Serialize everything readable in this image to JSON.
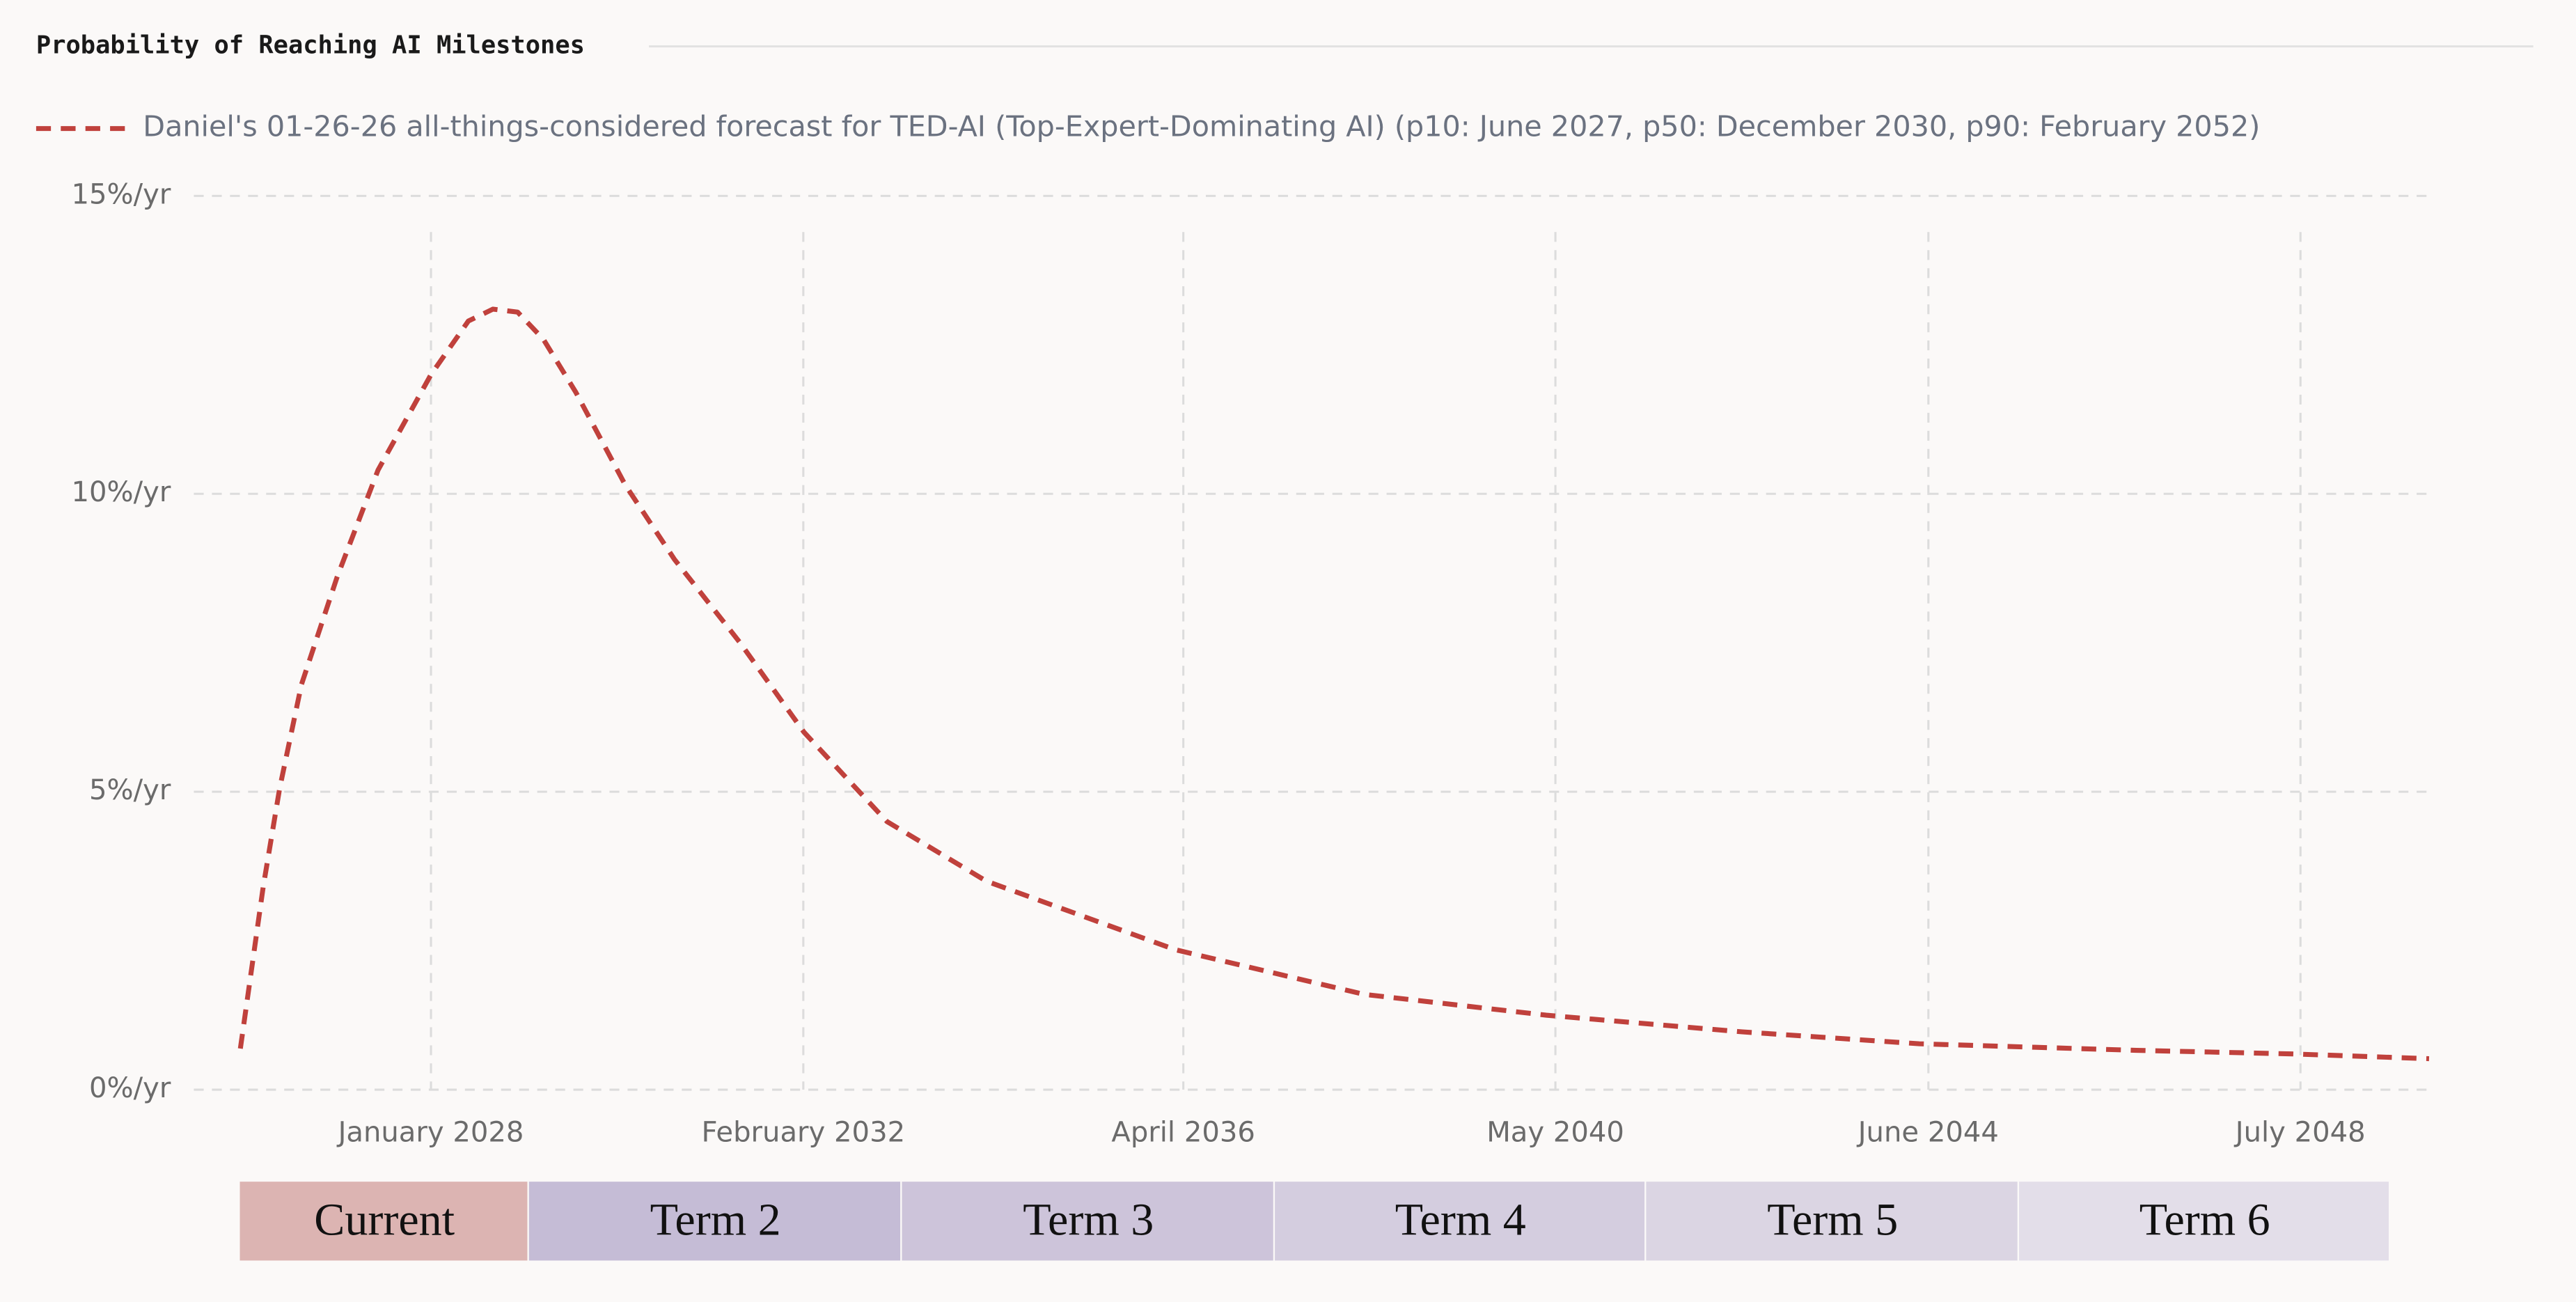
{
  "chart_data": {
    "type": "line",
    "title": "Probability of Reaching AI Milestones",
    "x": [
      2025.91,
      2026.16,
      2026.34,
      2026.58,
      2026.97,
      2027.42,
      2028.0,
      2028.41,
      2028.68,
      2028.95,
      2029.23,
      2029.59,
      2030.13,
      2030.67,
      2031.39,
      2032.09,
      2033.0,
      2034.09,
      2036.16,
      2038.23,
      2040.23,
      2042.38,
      2044.32,
      2046.7,
      2048.41,
      2049.91
    ],
    "series": [
      {
        "name": "Daniel's 01-26-26 all-things-considered forecast for TED-AI (Top-Expert-Dominating AI) (p10: June 2027, p50: December 2030, p90: February 2052)",
        "color": "#c0413c",
        "dashed": true,
        "values": [
          0.69,
          3.4,
          5.05,
          6.8,
          8.6,
          10.4,
          12.0,
          12.9,
          13.1,
          13.05,
          12.6,
          11.7,
          10.15,
          8.9,
          7.5,
          6.0,
          4.5,
          3.5,
          2.35,
          1.6,
          1.25,
          0.97,
          0.77,
          0.66,
          0.6,
          0.52
        ]
      }
    ],
    "xlim": [
      2025.4,
      2049.9
    ],
    "ylim": [
      0,
      15
    ],
    "xticks": [
      {
        "value": 2028.0,
        "label": "January 2028"
      },
      {
        "value": 2032.083,
        "label": "February 2032"
      },
      {
        "value": 2036.25,
        "label": "April 2036"
      },
      {
        "value": 2040.33,
        "label": "May 2040"
      },
      {
        "value": 2044.42,
        "label": "June 2044"
      },
      {
        "value": 2048.5,
        "label": "July 2048"
      }
    ],
    "yticks": [
      {
        "value": 0,
        "label": "0%/yr"
      },
      {
        "value": 5,
        "label": "5%/yr"
      },
      {
        "value": 10,
        "label": "10%/yr"
      },
      {
        "value": 15,
        "label": "15%/yr"
      }
    ],
    "grid": true
  },
  "terms": [
    {
      "label": "Current",
      "color": "#dcb4b2"
    },
    {
      "label": "Term 2",
      "color": "#c5bcd6"
    },
    {
      "label": "Term 3",
      "color": "#cdc4da"
    },
    {
      "label": "Term 4",
      "color": "#d4cddf"
    },
    {
      "label": "Term 5",
      "color": "#dbd5e3"
    },
    {
      "label": "Term 6",
      "color": "#e3dee9"
    }
  ]
}
